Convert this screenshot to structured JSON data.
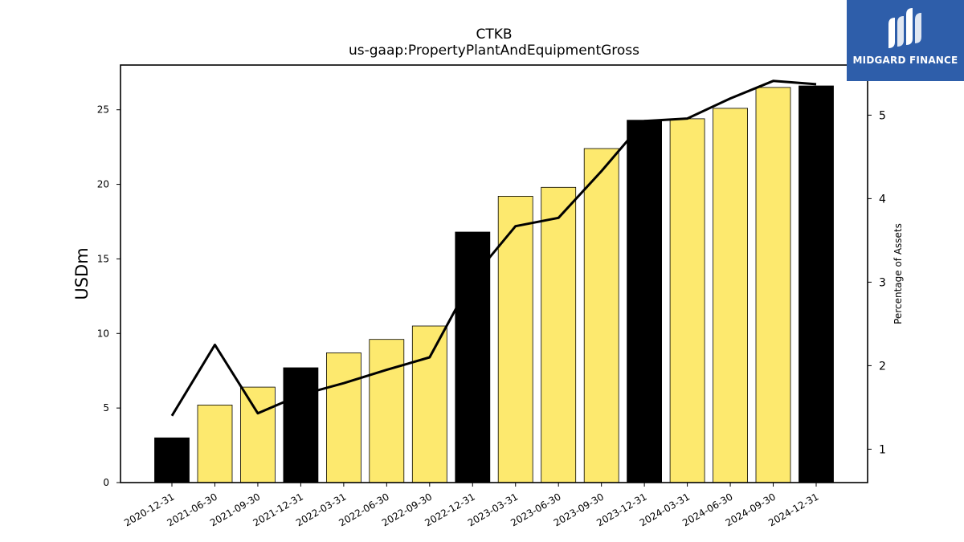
{
  "chart_data": {
    "type": "bar",
    "title": "CTKB",
    "subtitle": "us-gaap:PropertyPlantAndEquipmentGross",
    "ylabel": "USDm",
    "y2label": "Percentage of Assets",
    "categories": [
      "2020-12-31",
      "2021-06-30",
      "2021-09-30",
      "2021-12-31",
      "2022-03-31",
      "2022-06-30",
      "2022-09-30",
      "2022-12-31",
      "2023-03-31",
      "2023-06-30",
      "2023-09-30",
      "2023-12-31",
      "2024-03-31",
      "2024-06-30",
      "2024-09-30",
      "2024-12-31"
    ],
    "series": [
      {
        "type": "bar",
        "values": [
          3.0,
          5.2,
          6.4,
          7.7,
          8.7,
          9.6,
          10.5,
          16.8,
          19.2,
          19.8,
          22.4,
          24.3,
          24.4,
          25.1,
          26.5,
          26.6
        ]
      },
      {
        "type": "line",
        "axis": "right",
        "values": [
          1.4,
          2.25,
          1.43,
          1.65,
          1.79,
          1.95,
          2.1,
          3.05,
          3.67,
          3.77,
          4.33,
          4.93,
          4.96,
          5.2,
          5.41,
          5.37
        ]
      }
    ],
    "annual_flags": [
      true,
      false,
      false,
      true,
      false,
      false,
      false,
      true,
      false,
      false,
      false,
      true,
      false,
      false,
      false,
      true
    ],
    "ylim": [
      0,
      28
    ],
    "y2lim": [
      0.6,
      5.6
    ],
    "yticks": [
      0,
      5,
      10,
      15,
      20,
      25
    ],
    "y2ticks": [
      1,
      2,
      3,
      4,
      5
    ],
    "grid": false,
    "colors": {
      "annual_bar": "#000000",
      "quarter_bar": "#fde96e",
      "bar_edge": "#000000",
      "line": "#000000"
    }
  },
  "logo": {
    "text": "MIDGARD FINANCE",
    "bg_color": "#2e5eaa"
  }
}
